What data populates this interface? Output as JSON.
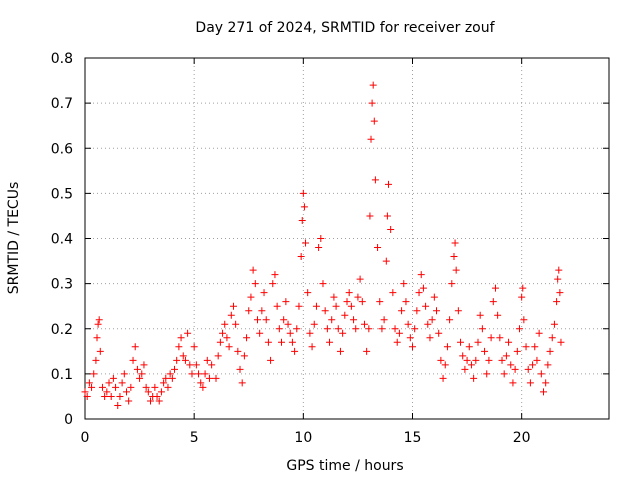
{
  "chart_data": {
    "type": "scatter",
    "title": "Day 271 of 2024, SRMTID for receiver zouf",
    "xlabel": "GPS time / hours",
    "ylabel": "SRMTID / TECUs",
    "xlim": [
      0,
      24
    ],
    "ylim": [
      0,
      0.8
    ],
    "xticks": [
      0,
      5,
      10,
      15,
      20
    ],
    "yticks": [
      0,
      0.1,
      0.2,
      0.3,
      0.4,
      0.5,
      0.6,
      0.7,
      0.8
    ],
    "xtick_labels": [
      "0",
      "5",
      "10",
      "15",
      "20"
    ],
    "ytick_labels": [
      "0",
      "0.1",
      "0.2",
      "0.3",
      "0.4",
      "0.5",
      "0.6",
      "0.7",
      "0.8"
    ],
    "grid": true,
    "marker": "+",
    "color": "#ff0000",
    "series": [
      {
        "name": "SRMTID",
        "points": [
          [
            0.0,
            0.06
          ],
          [
            0.1,
            0.05
          ],
          [
            0.2,
            0.08
          ],
          [
            0.3,
            0.07
          ],
          [
            0.4,
            0.1
          ],
          [
            0.5,
            0.13
          ],
          [
            0.55,
            0.18
          ],
          [
            0.6,
            0.21
          ],
          [
            0.65,
            0.22
          ],
          [
            0.7,
            0.15
          ],
          [
            0.8,
            0.07
          ],
          [
            0.9,
            0.05
          ],
          [
            1.0,
            0.06
          ],
          [
            1.1,
            0.08
          ],
          [
            1.2,
            0.05
          ],
          [
            1.3,
            0.09
          ],
          [
            1.4,
            0.07
          ],
          [
            1.5,
            0.03
          ],
          [
            1.6,
            0.05
          ],
          [
            1.7,
            0.08
          ],
          [
            1.8,
            0.1
          ],
          [
            1.9,
            0.06
          ],
          [
            2.0,
            0.04
          ],
          [
            2.1,
            0.07
          ],
          [
            2.2,
            0.13
          ],
          [
            2.3,
            0.16
          ],
          [
            2.4,
            0.11
          ],
          [
            2.5,
            0.09
          ],
          [
            2.6,
            0.1
          ],
          [
            2.7,
            0.12
          ],
          [
            2.8,
            0.07
          ],
          [
            2.9,
            0.06
          ],
          [
            3.0,
            0.04
          ],
          [
            3.1,
            0.05
          ],
          [
            3.2,
            0.07
          ],
          [
            3.3,
            0.05
          ],
          [
            3.4,
            0.04
          ],
          [
            3.5,
            0.06
          ],
          [
            3.6,
            0.08
          ],
          [
            3.7,
            0.09
          ],
          [
            3.8,
            0.07
          ],
          [
            3.9,
            0.1
          ],
          [
            4.0,
            0.09
          ],
          [
            4.1,
            0.11
          ],
          [
            4.2,
            0.13
          ],
          [
            4.3,
            0.16
          ],
          [
            4.4,
            0.18
          ],
          [
            4.5,
            0.14
          ],
          [
            4.6,
            0.13
          ],
          [
            4.7,
            0.19
          ],
          [
            4.8,
            0.12
          ],
          [
            4.9,
            0.1
          ],
          [
            5.0,
            0.16
          ],
          [
            5.1,
            0.12
          ],
          [
            5.2,
            0.1
          ],
          [
            5.3,
            0.08
          ],
          [
            5.4,
            0.07
          ],
          [
            5.5,
            0.1
          ],
          [
            5.6,
            0.13
          ],
          [
            5.7,
            0.09
          ],
          [
            5.8,
            0.12
          ],
          [
            6.0,
            0.09
          ],
          [
            6.1,
            0.14
          ],
          [
            6.2,
            0.17
          ],
          [
            6.3,
            0.19
          ],
          [
            6.4,
            0.21
          ],
          [
            6.5,
            0.18
          ],
          [
            6.6,
            0.16
          ],
          [
            6.7,
            0.23
          ],
          [
            6.8,
            0.25
          ],
          [
            6.9,
            0.21
          ],
          [
            7.0,
            0.15
          ],
          [
            7.1,
            0.11
          ],
          [
            7.2,
            0.08
          ],
          [
            7.3,
            0.14
          ],
          [
            7.4,
            0.18
          ],
          [
            7.5,
            0.24
          ],
          [
            7.6,
            0.27
          ],
          [
            7.7,
            0.33
          ],
          [
            7.8,
            0.3
          ],
          [
            7.9,
            0.22
          ],
          [
            8.0,
            0.19
          ],
          [
            8.1,
            0.24
          ],
          [
            8.2,
            0.28
          ],
          [
            8.3,
            0.22
          ],
          [
            8.4,
            0.17
          ],
          [
            8.5,
            0.13
          ],
          [
            8.6,
            0.3
          ],
          [
            8.7,
            0.32
          ],
          [
            8.8,
            0.25
          ],
          [
            8.9,
            0.2
          ],
          [
            9.0,
            0.17
          ],
          [
            9.1,
            0.22
          ],
          [
            9.2,
            0.26
          ],
          [
            9.3,
            0.21
          ],
          [
            9.4,
            0.19
          ],
          [
            9.5,
            0.17
          ],
          [
            9.6,
            0.15
          ],
          [
            9.7,
            0.2
          ],
          [
            9.8,
            0.25
          ],
          [
            9.9,
            0.36
          ],
          [
            9.95,
            0.44
          ],
          [
            10.0,
            0.5
          ],
          [
            10.05,
            0.47
          ],
          [
            10.1,
            0.39
          ],
          [
            10.2,
            0.28
          ],
          [
            10.3,
            0.19
          ],
          [
            10.4,
            0.16
          ],
          [
            10.5,
            0.21
          ],
          [
            10.6,
            0.25
          ],
          [
            10.7,
            0.38
          ],
          [
            10.8,
            0.4
          ],
          [
            10.9,
            0.3
          ],
          [
            11.0,
            0.24
          ],
          [
            11.1,
            0.2
          ],
          [
            11.2,
            0.17
          ],
          [
            11.3,
            0.22
          ],
          [
            11.4,
            0.27
          ],
          [
            11.5,
            0.25
          ],
          [
            11.6,
            0.2
          ],
          [
            11.7,
            0.15
          ],
          [
            11.8,
            0.19
          ],
          [
            11.9,
            0.23
          ],
          [
            12.0,
            0.26
          ],
          [
            12.1,
            0.28
          ],
          [
            12.2,
            0.25
          ],
          [
            12.3,
            0.22
          ],
          [
            12.4,
            0.2
          ],
          [
            12.5,
            0.27
          ],
          [
            12.6,
            0.31
          ],
          [
            12.7,
            0.26
          ],
          [
            12.8,
            0.21
          ],
          [
            12.9,
            0.15
          ],
          [
            13.0,
            0.2
          ],
          [
            13.05,
            0.45
          ],
          [
            13.1,
            0.62
          ],
          [
            13.15,
            0.7
          ],
          [
            13.2,
            0.74
          ],
          [
            13.25,
            0.66
          ],
          [
            13.3,
            0.53
          ],
          [
            13.4,
            0.38
          ],
          [
            13.5,
            0.26
          ],
          [
            13.6,
            0.2
          ],
          [
            13.7,
            0.22
          ],
          [
            13.8,
            0.35
          ],
          [
            13.85,
            0.45
          ],
          [
            13.9,
            0.52
          ],
          [
            14.0,
            0.42
          ],
          [
            14.1,
            0.28
          ],
          [
            14.2,
            0.2
          ],
          [
            14.3,
            0.17
          ],
          [
            14.4,
            0.19
          ],
          [
            14.5,
            0.24
          ],
          [
            14.6,
            0.3
          ],
          [
            14.7,
            0.26
          ],
          [
            14.8,
            0.21
          ],
          [
            14.9,
            0.18
          ],
          [
            15.0,
            0.16
          ],
          [
            15.1,
            0.2
          ],
          [
            15.2,
            0.24
          ],
          [
            15.3,
            0.28
          ],
          [
            15.4,
            0.32
          ],
          [
            15.5,
            0.29
          ],
          [
            15.6,
            0.25
          ],
          [
            15.7,
            0.21
          ],
          [
            15.8,
            0.18
          ],
          [
            15.9,
            0.22
          ],
          [
            16.0,
            0.27
          ],
          [
            16.1,
            0.24
          ],
          [
            16.2,
            0.19
          ],
          [
            16.3,
            0.13
          ],
          [
            16.4,
            0.09
          ],
          [
            16.5,
            0.12
          ],
          [
            16.6,
            0.16
          ],
          [
            16.7,
            0.22
          ],
          [
            16.8,
            0.3
          ],
          [
            16.9,
            0.36
          ],
          [
            16.95,
            0.39
          ],
          [
            17.0,
            0.33
          ],
          [
            17.1,
            0.24
          ],
          [
            17.2,
            0.17
          ],
          [
            17.3,
            0.14
          ],
          [
            17.4,
            0.11
          ],
          [
            17.5,
            0.13
          ],
          [
            17.6,
            0.16
          ],
          [
            17.7,
            0.12
          ],
          [
            17.8,
            0.09
          ],
          [
            17.9,
            0.13
          ],
          [
            18.0,
            0.17
          ],
          [
            18.1,
            0.23
          ],
          [
            18.2,
            0.2
          ],
          [
            18.3,
            0.15
          ],
          [
            18.4,
            0.1
          ],
          [
            18.5,
            0.13
          ],
          [
            18.6,
            0.18
          ],
          [
            18.7,
            0.26
          ],
          [
            18.8,
            0.29
          ],
          [
            18.9,
            0.23
          ],
          [
            19.0,
            0.18
          ],
          [
            19.1,
            0.13
          ],
          [
            19.2,
            0.1
          ],
          [
            19.3,
            0.14
          ],
          [
            19.4,
            0.17
          ],
          [
            19.5,
            0.12
          ],
          [
            19.6,
            0.08
          ],
          [
            19.7,
            0.11
          ],
          [
            19.8,
            0.15
          ],
          [
            19.9,
            0.2
          ],
          [
            20.0,
            0.27
          ],
          [
            20.05,
            0.29
          ],
          [
            20.1,
            0.22
          ],
          [
            20.2,
            0.16
          ],
          [
            20.3,
            0.11
          ],
          [
            20.4,
            0.08
          ],
          [
            20.5,
            0.12
          ],
          [
            20.6,
            0.16
          ],
          [
            20.7,
            0.13
          ],
          [
            20.8,
            0.19
          ],
          [
            20.9,
            0.1
          ],
          [
            21.0,
            0.06
          ],
          [
            21.1,
            0.08
          ],
          [
            21.2,
            0.12
          ],
          [
            21.3,
            0.15
          ],
          [
            21.4,
            0.18
          ],
          [
            21.5,
            0.21
          ],
          [
            21.6,
            0.26
          ],
          [
            21.65,
            0.31
          ],
          [
            21.7,
            0.33
          ],
          [
            21.75,
            0.28
          ],
          [
            21.8,
            0.17
          ]
        ]
      }
    ]
  }
}
